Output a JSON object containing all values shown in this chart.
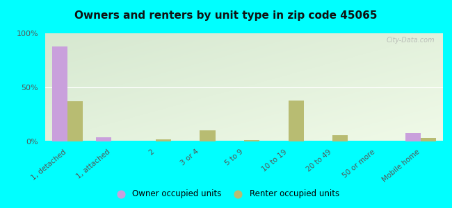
{
  "title": "Owners and renters by unit type in zip code 45065",
  "categories": [
    "1, detached",
    "1, attached",
    "2",
    "3 or 4",
    "5 to 9",
    "10 to 19",
    "20 to 49",
    "50 or more",
    "Mobile home"
  ],
  "owner_values": [
    88,
    4,
    0,
    0,
    0,
    0,
    0,
    0,
    8
  ],
  "renter_values": [
    37,
    0,
    2,
    10,
    1,
    38,
    6,
    0,
    3
  ],
  "owner_color": "#c9a0dc",
  "renter_color": "#b8bc72",
  "bg_color_top_left": "#d6e8d0",
  "bg_color_bottom_right": "#eef7e0",
  "outer_background": "#00ffff",
  "ylim": [
    0,
    100
  ],
  "yticks": [
    0,
    50,
    100
  ],
  "ytick_labels": [
    "0%",
    "50%",
    "100%"
  ],
  "bar_width": 0.35,
  "legend_owner": "Owner occupied units",
  "legend_renter": "Renter occupied units",
  "watermark": "City-Data.com"
}
